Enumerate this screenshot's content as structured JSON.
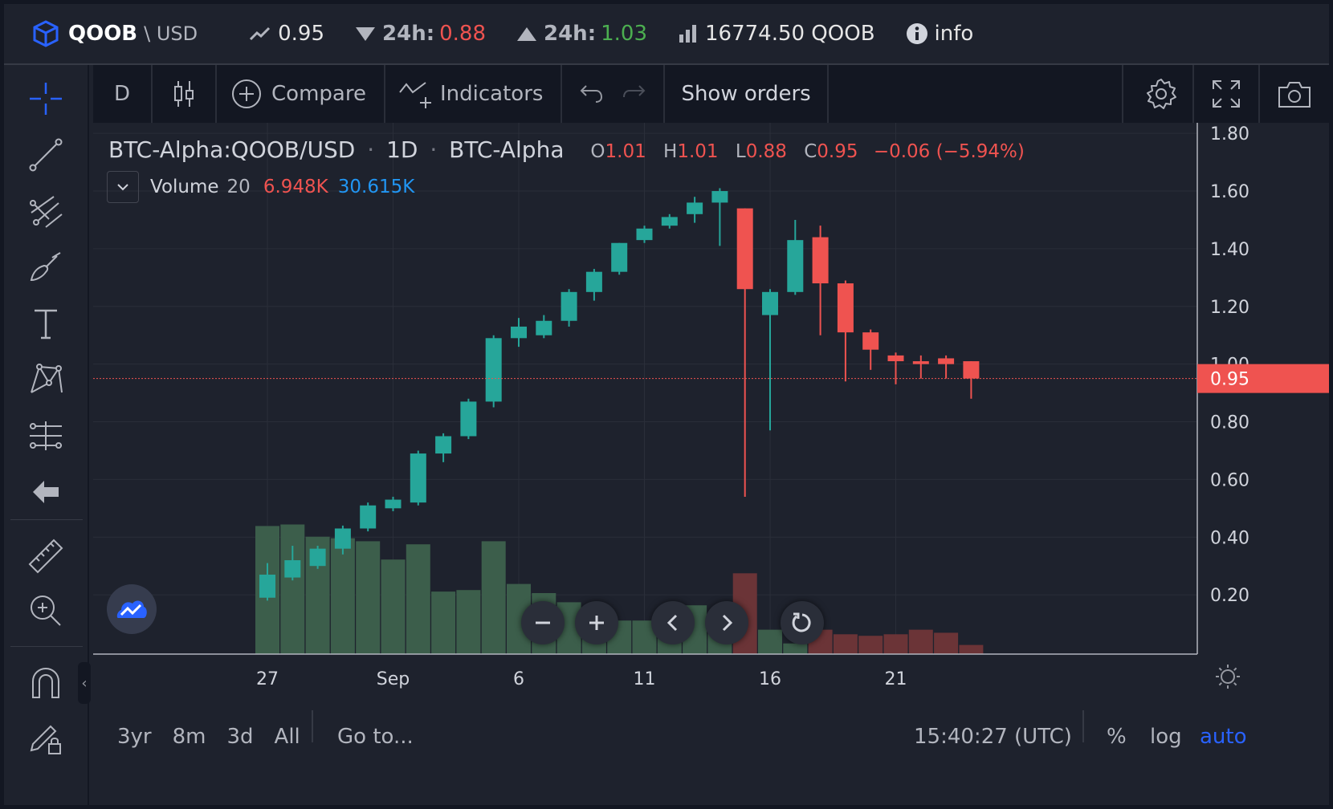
{
  "ticker": {
    "symbol": "QOOB",
    "quote": "\\ USD",
    "last_price": "0.95",
    "low_label": "24h:",
    "low_value": "0.88",
    "high_label": "24h:",
    "high_value": "1.03",
    "volume": "16774.50 QOOB",
    "info_label": "info",
    "colors": {
      "down": "#ef5350",
      "up": "#4caf50",
      "brand": "#2962ff"
    }
  },
  "left_toolbar": {
    "tools": [
      "crosshair-icon",
      "trend-line-icon",
      "pitchfork-icon",
      "brush-icon",
      "text-icon",
      "pattern-icon",
      "prediction-icon",
      "back-arrow-icon",
      "ruler-icon",
      "zoom-in-icon",
      "magnet-icon",
      "lock-drawing-icon"
    ]
  },
  "chart_toolbar": {
    "interval": "D",
    "compare_label": "Compare",
    "indicators_label": "Indicators",
    "show_orders_label": "Show orders"
  },
  "legend": {
    "symbol": "BTC-Alpha:QOOB/USD",
    "sep1": "·",
    "interval": "1D",
    "sep2": "·",
    "exchange": "BTC-Alpha",
    "o_label": "O",
    "o_value": "1.01",
    "h_label": "H",
    "h_value": "1.01",
    "l_label": "L",
    "l_value": "0.88",
    "c_label": "C",
    "c_value": "0.95",
    "change": "−0.06 (−5.94%)",
    "volume_label": "Volume",
    "volume_len": "20",
    "volume_value": "6.948K",
    "volume_ma": "30.615K"
  },
  "chart_data": {
    "type": "candlestick",
    "title": "",
    "y_ticks": [
      "1.80",
      "1.60",
      "1.40",
      "1.20",
      "1.00",
      "0.80",
      "0.60",
      "0.40",
      "0.20"
    ],
    "ylim": [
      0.0,
      1.82
    ],
    "x_ticks": [
      {
        "label": "27",
        "index": 0
      },
      {
        "label": "Sep",
        "index": 5
      },
      {
        "label": "6",
        "index": 10
      },
      {
        "label": "11",
        "index": 15
      },
      {
        "label": "16",
        "index": 20
      },
      {
        "label": "21",
        "index": 25
      }
    ],
    "last_price": 0.95,
    "last_price_label": "0.95",
    "candles": [
      {
        "o": 0.19,
        "h": 0.31,
        "l": 0.18,
        "c": 0.27
      },
      {
        "o": 0.26,
        "h": 0.37,
        "l": 0.25,
        "c": 0.32
      },
      {
        "o": 0.3,
        "h": 0.37,
        "l": 0.29,
        "c": 0.36
      },
      {
        "o": 0.36,
        "h": 0.44,
        "l": 0.34,
        "c": 0.43
      },
      {
        "o": 0.43,
        "h": 0.52,
        "l": 0.42,
        "c": 0.51
      },
      {
        "o": 0.5,
        "h": 0.54,
        "l": 0.49,
        "c": 0.53
      },
      {
        "o": 0.52,
        "h": 0.7,
        "l": 0.51,
        "c": 0.69
      },
      {
        "o": 0.69,
        "h": 0.76,
        "l": 0.66,
        "c": 0.75
      },
      {
        "o": 0.75,
        "h": 0.88,
        "l": 0.74,
        "c": 0.87
      },
      {
        "o": 0.87,
        "h": 1.1,
        "l": 0.85,
        "c": 1.09
      },
      {
        "o": 1.09,
        "h": 1.16,
        "l": 1.06,
        "c": 1.13
      },
      {
        "o": 1.1,
        "h": 1.17,
        "l": 1.09,
        "c": 1.15
      },
      {
        "o": 1.15,
        "h": 1.26,
        "l": 1.13,
        "c": 1.25
      },
      {
        "o": 1.25,
        "h": 1.33,
        "l": 1.22,
        "c": 1.32
      },
      {
        "o": 1.32,
        "h": 1.42,
        "l": 1.31,
        "c": 1.42
      },
      {
        "o": 1.43,
        "h": 1.48,
        "l": 1.42,
        "c": 1.47
      },
      {
        "o": 1.48,
        "h": 1.52,
        "l": 1.47,
        "c": 1.51
      },
      {
        "o": 1.52,
        "h": 1.58,
        "l": 1.49,
        "c": 1.56
      },
      {
        "o": 1.56,
        "h": 1.61,
        "l": 1.41,
        "c": 1.6
      },
      {
        "o": 1.54,
        "h": 1.54,
        "l": 0.54,
        "c": 1.26
      },
      {
        "o": 1.17,
        "h": 1.26,
        "l": 0.77,
        "c": 1.25
      },
      {
        "o": 1.25,
        "h": 1.5,
        "l": 1.24,
        "c": 1.43
      },
      {
        "o": 1.44,
        "h": 1.48,
        "l": 1.1,
        "c": 1.28
      },
      {
        "o": 1.28,
        "h": 1.29,
        "l": 0.94,
        "c": 1.11
      },
      {
        "o": 1.11,
        "h": 1.12,
        "l": 0.98,
        "c": 1.05
      },
      {
        "o": 1.03,
        "h": 1.04,
        "l": 0.93,
        "c": 1.01
      },
      {
        "o": 1.01,
        "h": 1.03,
        "l": 0.95,
        "c": 1.0
      },
      {
        "o": 1.02,
        "h": 1.03,
        "l": 0.95,
        "c": 1.0
      },
      {
        "o": 1.01,
        "h": 1.01,
        "l": 0.88,
        "c": 0.95
      }
    ],
    "volumes": [
      0.84,
      0.85,
      0.77,
      0.76,
      0.74,
      0.62,
      0.72,
      0.41,
      0.42,
      0.74,
      0.46,
      0.4,
      0.34,
      0.27,
      0.22,
      0.22,
      0.22,
      0.32,
      0.21,
      0.53,
      0.16,
      0.07,
      0.16,
      0.13,
      0.12,
      0.13,
      0.16,
      0.14,
      0.06
    ],
    "colors": {
      "up": "#26a69a",
      "down": "#ef5350",
      "vol_up": "#3c5e4b",
      "vol_down": "#6b3437",
      "grid": "#2a2e39",
      "background": "#1e222d"
    }
  },
  "bottom_bar": {
    "ranges": [
      "3yr",
      "8m",
      "3d",
      "All"
    ],
    "goto_label": "Go to...",
    "time": "15:40:27 (UTC)",
    "percent_label": "%",
    "log_label": "log",
    "auto_label": "auto"
  }
}
